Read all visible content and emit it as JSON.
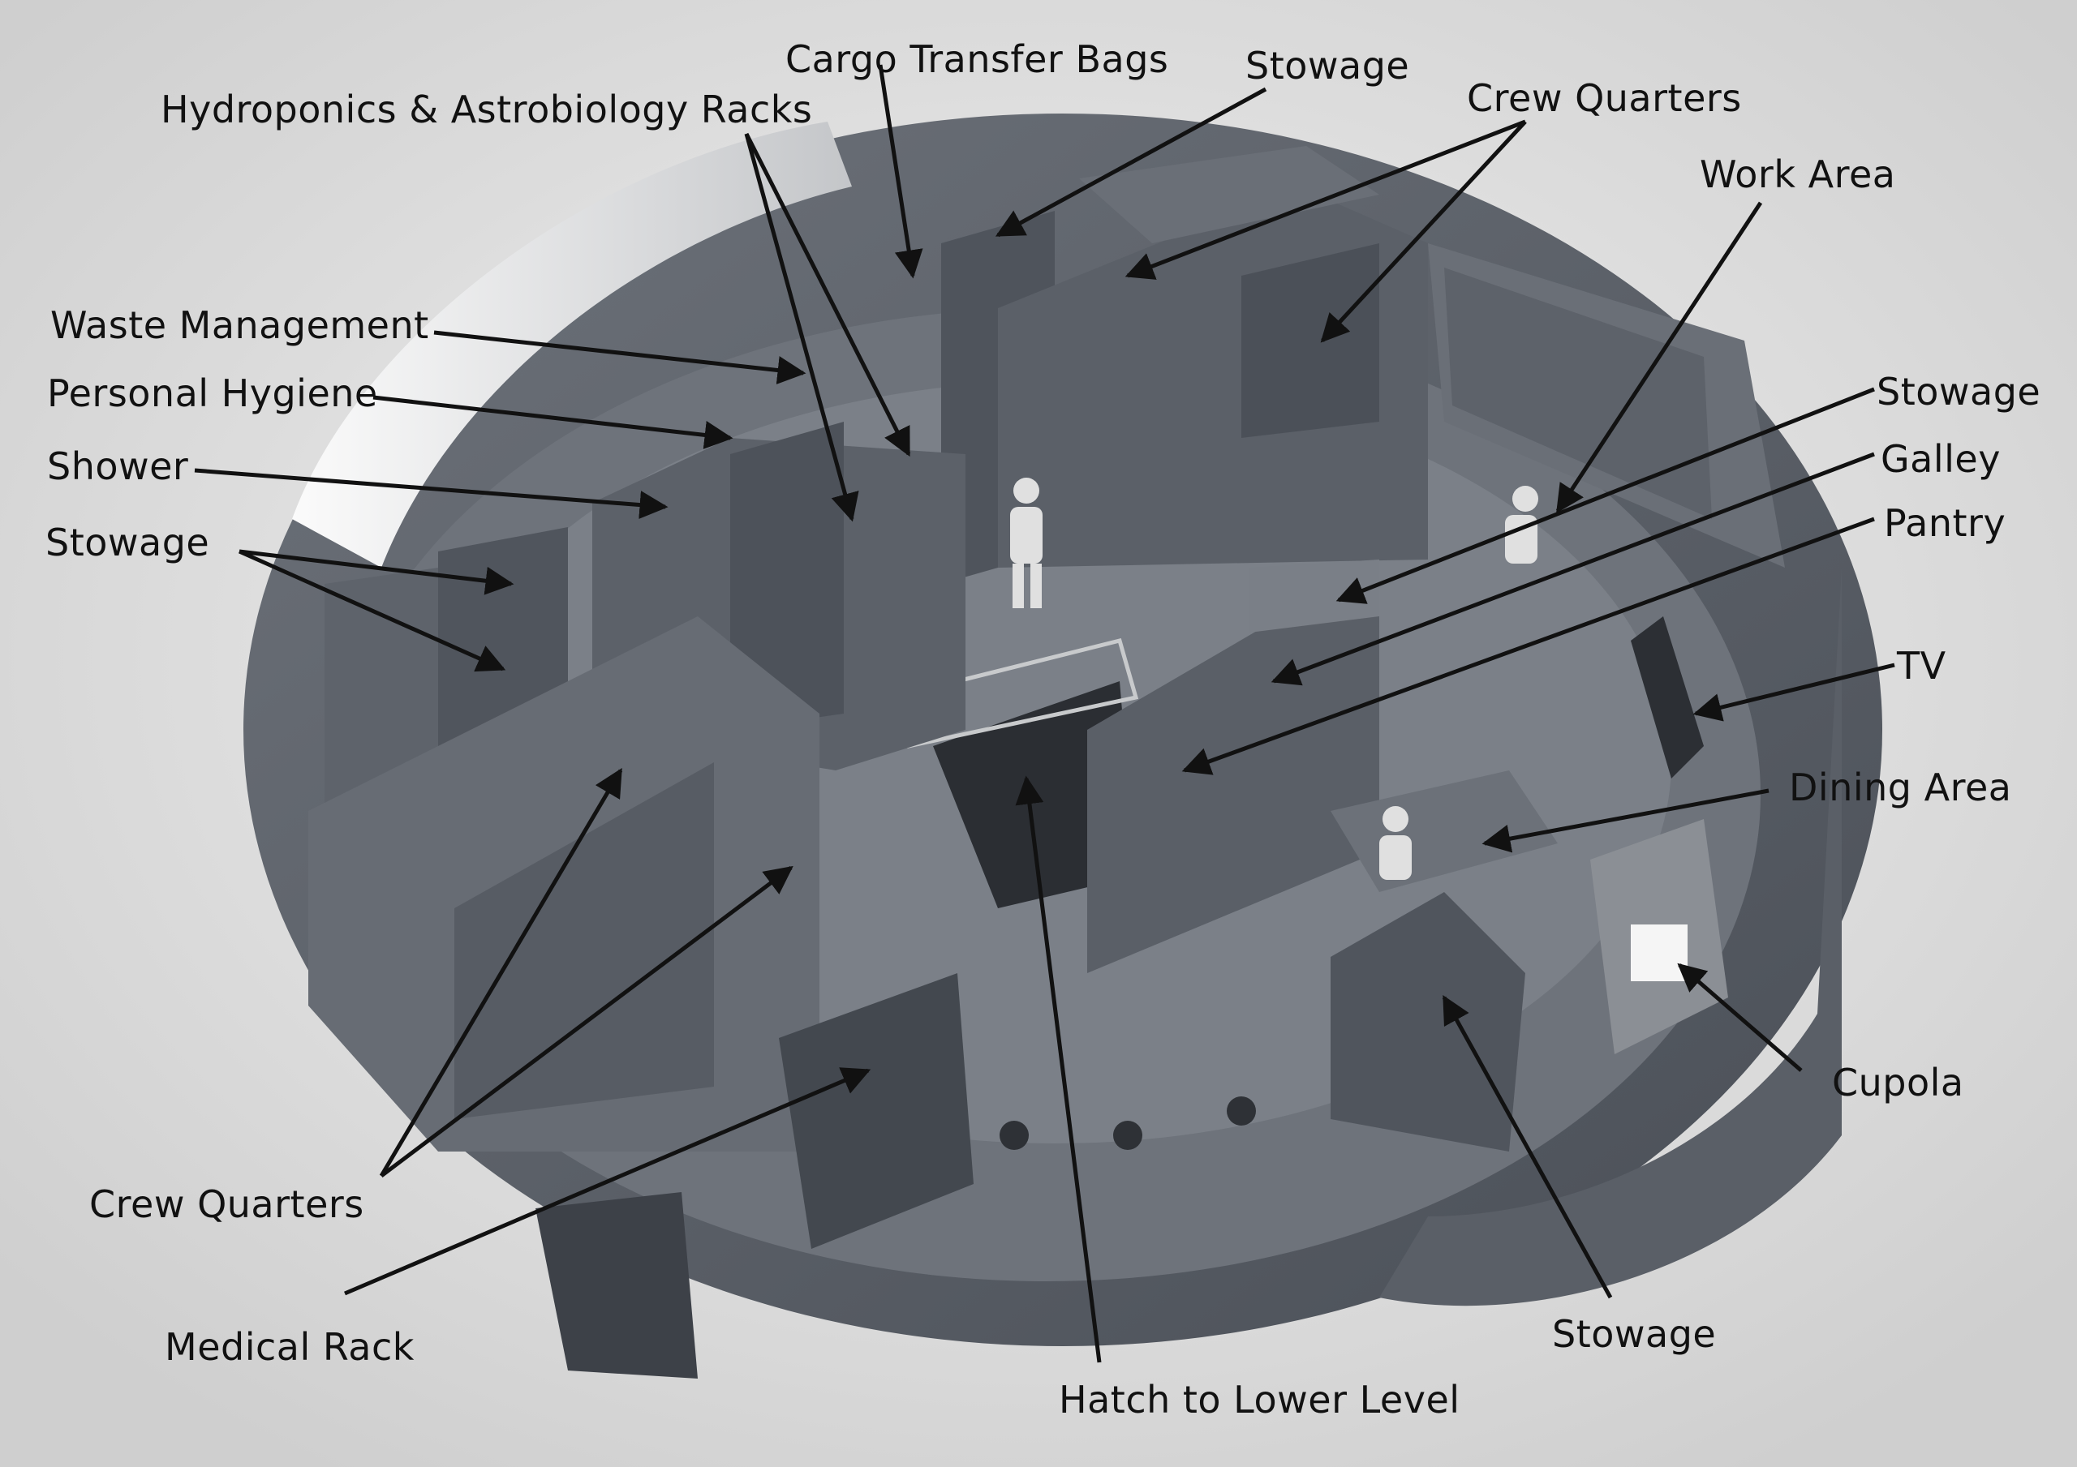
{
  "labels": {
    "cargo_transfer_bags": "Cargo Transfer Bags",
    "stowage_top": "Stowage",
    "hydroponics": "Hydroponics & Astrobiology Racks",
    "crew_quarters_top": "Crew Quarters",
    "work_area": "Work Area",
    "waste_management": "Waste Management",
    "personal_hygiene": "Personal Hygiene",
    "shower": "Shower",
    "stowage_left": "Stowage",
    "stowage_right": "Stowage",
    "galley": "Galley",
    "pantry": "Pantry",
    "tv": "TV",
    "dining_area": "Dining Area",
    "cupola": "Cupola",
    "crew_quarters_bottom": "Crew Quarters",
    "medical_rack": "Medical Rack",
    "stowage_bottom": "Stowage",
    "hatch": "Hatch to Lower Level"
  }
}
